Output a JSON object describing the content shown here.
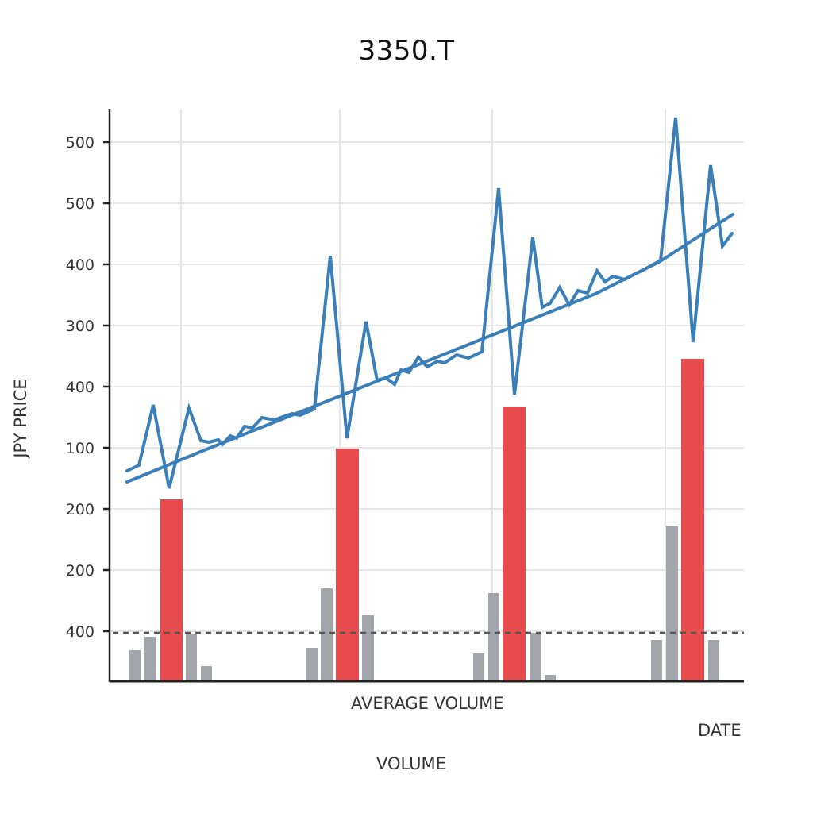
{
  "chart": {
    "title": "3350.T",
    "ylabel": "JPY PRICE",
    "xlabel": "DATE",
    "annotation_average_volume": "AVERAGE VOLUME",
    "volume_label": "VOLUME"
  },
  "colors": {
    "price_line": "#3a7fb8",
    "trend_line": "#3a7fb8",
    "volume_spike": "#e84c4c",
    "volume_normal": "#a2a5ab",
    "axis": "#222222",
    "grid": "#e6e6e6",
    "avg_volume_line": "#555555"
  },
  "chart_data": {
    "type": "line+bar",
    "title": "3350.T",
    "xlabel": "DATE",
    "ylabel": "JPY PRICE",
    "y_tick_labels": [
      "500",
      "500",
      "400",
      "300",
      "400",
      "100",
      "200",
      "200",
      "400"
    ],
    "x_tick_labels": [],
    "grid": true,
    "legend": null,
    "annotations": [
      "AVERAGE VOLUME",
      "VOLUME"
    ],
    "layout": {
      "plot_left": 138,
      "plot_right": 937,
      "plot_top": 137,
      "plot_bottom": 858,
      "ytick_positions": [
        179,
        256,
        333,
        410,
        487,
        564,
        641,
        718,
        795
      ],
      "vgrid_positions": [
        228,
        428,
        620,
        838
      ],
      "avg_volume_y": 797
    },
    "series": [
      {
        "name": "Price",
        "type": "line",
        "note": "pixel coordinates [x, y] of the jagged price series",
        "points": [
          [
            160,
            593
          ],
          [
            175,
            586
          ],
          [
            193,
            510
          ],
          [
            213,
            615
          ],
          [
            238,
            514
          ],
          [
            253,
            555
          ],
          [
            263,
            557
          ],
          [
            275,
            554
          ],
          [
            280,
            560
          ],
          [
            290,
            549
          ],
          [
            298,
            552
          ],
          [
            308,
            537
          ],
          [
            318,
            539
          ],
          [
            330,
            526
          ],
          [
            346,
            529
          ],
          [
            356,
            525
          ],
          [
            368,
            521
          ],
          [
            378,
            523
          ],
          [
            396,
            515
          ],
          [
            416,
            322
          ],
          [
            437,
            552
          ],
          [
            461,
            405
          ],
          [
            475,
            479
          ],
          [
            486,
            476
          ],
          [
            497,
            484
          ],
          [
            505,
            466
          ],
          [
            515,
            469
          ],
          [
            527,
            450
          ],
          [
            538,
            462
          ],
          [
            551,
            455
          ],
          [
            560,
            457
          ],
          [
            575,
            447
          ],
          [
            590,
            451
          ],
          [
            607,
            443
          ],
          [
            628,
            237
          ],
          [
            648,
            497
          ],
          [
            671,
            299
          ],
          [
            683,
            387
          ],
          [
            693,
            382
          ],
          [
            705,
            362
          ],
          [
            717,
            384
          ],
          [
            728,
            366
          ],
          [
            740,
            369
          ],
          [
            752,
            341
          ],
          [
            762,
            355
          ],
          [
            772,
            348
          ],
          [
            787,
            352
          ],
          [
            798,
            346
          ],
          [
            814,
            338
          ],
          [
            832,
            328
          ],
          [
            851,
            148
          ],
          [
            873,
            431
          ],
          [
            895,
            208
          ],
          [
            910,
            310
          ],
          [
            922,
            294
          ]
        ]
      },
      {
        "name": "Trend",
        "type": "line",
        "points": [
          [
            160,
            607
          ],
          [
            250,
            570
          ],
          [
            350,
            530
          ],
          [
            450,
            490
          ],
          [
            550,
            450
          ],
          [
            650,
            410
          ],
          [
            750,
            370
          ],
          [
            830,
            330
          ],
          [
            923,
            270
          ]
        ]
      },
      {
        "name": "Volume",
        "type": "bar",
        "note": "bars as [x_left, width, top_y]; bottom at 858; spike=true for red high-volume bars",
        "bars": [
          {
            "x": 163,
            "w": 14,
            "top": 819,
            "spike": false
          },
          {
            "x": 182,
            "w": 14,
            "top": 802,
            "spike": false
          },
          {
            "x": 202,
            "w": 28,
            "top": 629,
            "spike": true
          },
          {
            "x": 234,
            "w": 14,
            "top": 798,
            "spike": false
          },
          {
            "x": 253,
            "w": 14,
            "top": 839,
            "spike": false
          },
          {
            "x": 386,
            "w": 14,
            "top": 816,
            "spike": false
          },
          {
            "x": 404,
            "w": 15,
            "top": 741,
            "spike": false
          },
          {
            "x": 423,
            "w": 29,
            "top": 565,
            "spike": true
          },
          {
            "x": 456,
            "w": 15,
            "top": 775,
            "spike": false
          },
          {
            "x": 596,
            "w": 14,
            "top": 823,
            "spike": false
          },
          {
            "x": 615,
            "w": 14,
            "top": 747,
            "spike": false
          },
          {
            "x": 633,
            "w": 29,
            "top": 512,
            "spike": true
          },
          {
            "x": 667,
            "w": 14,
            "top": 797,
            "spike": false
          },
          {
            "x": 686,
            "w": 14,
            "top": 850,
            "spike": false
          },
          {
            "x": 820,
            "w": 14,
            "top": 806,
            "spike": false
          },
          {
            "x": 839,
            "w": 15,
            "top": 662,
            "spike": false
          },
          {
            "x": 858,
            "w": 29,
            "top": 452,
            "spike": true
          },
          {
            "x": 892,
            "w": 14,
            "top": 806,
            "spike": false
          }
        ]
      }
    ]
  }
}
